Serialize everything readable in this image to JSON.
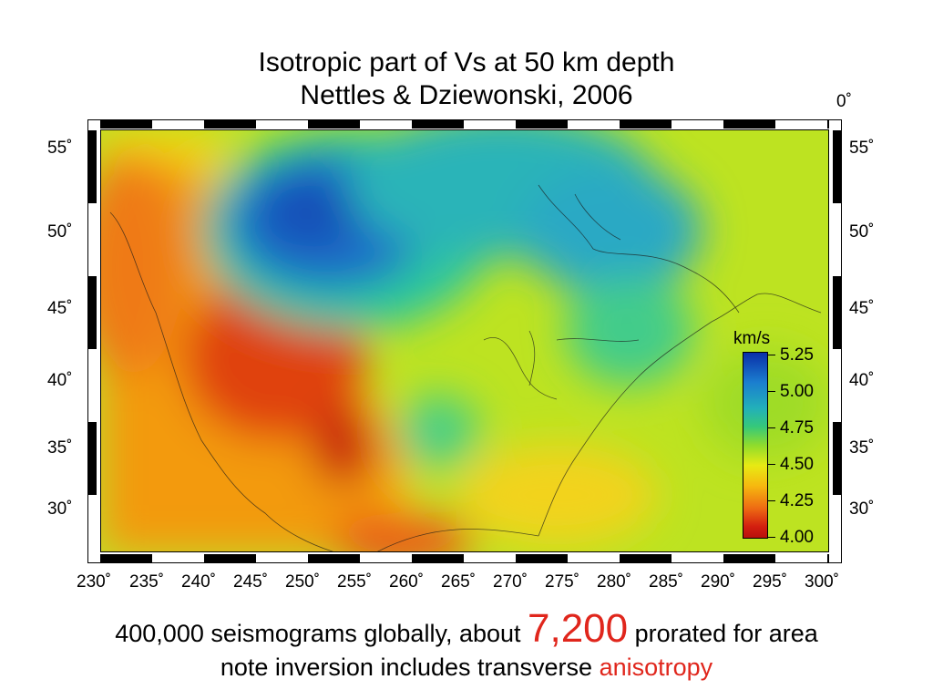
{
  "slide": {
    "title_line1": "Isotropic part of Vs at 50 km depth",
    "title_line2": "Nettles & Dziewonski, 2006",
    "corner_label": "0˚"
  },
  "map": {
    "lat_labels": [
      "55˚",
      "50˚",
      "45˚",
      "40˚",
      "35˚",
      "30˚"
    ],
    "lon_labels": [
      "230˚",
      "235˚",
      "240˚",
      "245˚",
      "250˚",
      "255˚",
      "260˚",
      "265˚",
      "270˚",
      "275˚",
      "280˚",
      "285˚",
      "290˚",
      "295˚",
      "300˚"
    ],
    "colorbar": {
      "unit": "km/s",
      "ticks": [
        "5.25",
        "5.00",
        "4.75",
        "4.50",
        "4.25",
        "4.00"
      ],
      "colors": [
        "#0a2fa8",
        "#1b7ecf",
        "#22b0b9",
        "#36c979",
        "#8fdc2c",
        "#e8ea13",
        "#f6b80f",
        "#ee6b13",
        "#d31e0f",
        "#b8100c"
      ]
    },
    "background_color": "#bde321",
    "anomaly_colors": {
      "slow": "#d8280e",
      "medium_slow": "#f39a0e",
      "fast": "#1b6fc8",
      "medium_fast": "#2cc6a0"
    }
  },
  "footer": {
    "line1_prefix": "400,000 seismograms globally, about ",
    "line1_number": "7,200",
    "line1_suffix": " prorated for area",
    "line2_prefix": "note inversion includes transverse ",
    "line2_highlight": "anisotropy"
  },
  "accent_color": "#e0261c"
}
